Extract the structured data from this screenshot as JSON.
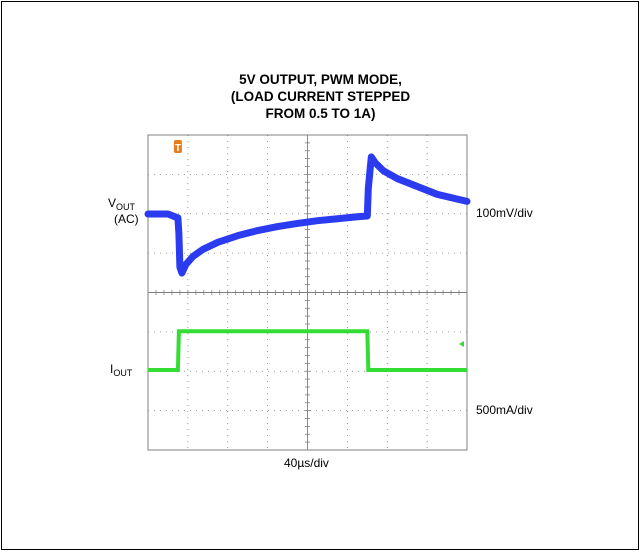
{
  "chart_data": {
    "type": "line",
    "title_lines": [
      "5V OUTPUT, PWM MODE,",
      "(LOAD CURRENT STEPPED",
      "FROM 0.5 TO 1A)"
    ],
    "trigger_marker": "T",
    "vout_label": {
      "main": "V",
      "sub": "OUT",
      "line2": "(AC)"
    },
    "iout_label": {
      "main": "I",
      "sub": "OUT"
    },
    "vout_scale": "100mV/div",
    "iout_scale": "500mA/div",
    "time_scale": "40µs/div",
    "x_divisions": 8,
    "y_divisions": 8,
    "grid": true,
    "time_unit": "µs",
    "time_range": [
      0,
      320
    ],
    "series": [
      {
        "color": "#2b3cf0",
        "x": [
          0,
          20,
          30,
          31,
          32,
          34,
          38,
          45,
          55,
          70,
          90,
          110,
          130,
          150,
          170,
          190,
          210,
          220,
          221,
          224,
          228,
          236,
          250,
          270,
          290,
          320
        ],
        "values": [
          0,
          0,
          -0.1,
          -0.5,
          -1.35,
          -1.5,
          -1.28,
          -1.08,
          -0.9,
          -0.72,
          -0.55,
          -0.42,
          -0.32,
          -0.24,
          -0.17,
          -0.12,
          -0.07,
          -0.05,
          0.65,
          1.45,
          1.3,
          1.1,
          0.9,
          0.7,
          0.5,
          0.32
        ],
        "unit": "mV/div"
      },
      {
        "color": "#33dd33",
        "x": [
          0,
          30,
          31,
          220,
          221,
          320
        ],
        "values": [
          0.5,
          0.5,
          1.0,
          1.0,
          0.5,
          0.5
        ],
        "unit": "A"
      }
    ],
    "colors": {
      "grid": "#808080",
      "current_cursor": "#33dd33",
      "trigger": "#e87b1e"
    }
  }
}
